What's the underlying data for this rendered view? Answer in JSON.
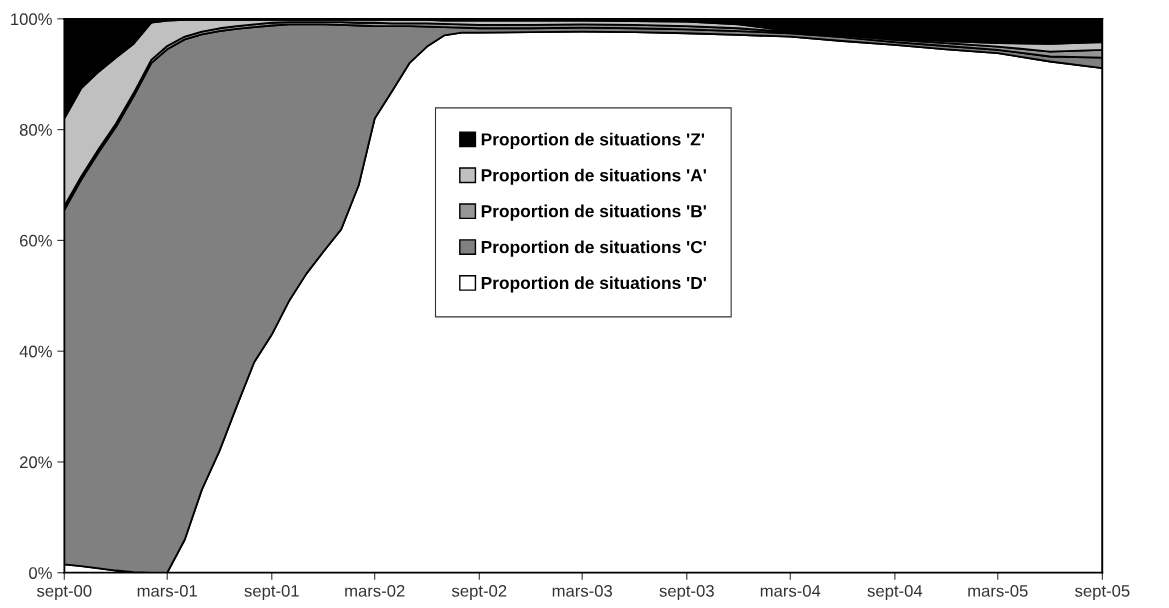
{
  "chart_data": {
    "type": "area",
    "stacked": true,
    "x": [
      "2000-09",
      "2000-10",
      "2000-11",
      "2000-12",
      "2001-01",
      "2001-02",
      "2001-03",
      "2001-04",
      "2001-05",
      "2001-06",
      "2001-07",
      "2001-08",
      "2001-09",
      "2001-10",
      "2001-11",
      "2001-12",
      "2002-01",
      "2002-02",
      "2002-03",
      "2002-04",
      "2002-05",
      "2002-06",
      "2002-07",
      "2002-08",
      "2002-09",
      "2002-12",
      "2003-03",
      "2003-06",
      "2003-09",
      "2003-12",
      "2004-03",
      "2004-06",
      "2004-09",
      "2004-12",
      "2005-03",
      "2005-06",
      "2005-09"
    ],
    "series": [
      {
        "name": "Proportion de situations 'D'",
        "color": "#ffffff",
        "values": [
          1.5,
          1.2,
          0.8,
          0.4,
          0.1,
          0,
          0,
          6,
          15,
          22,
          30,
          38,
          43,
          49,
          54,
          58,
          62,
          70,
          82,
          87,
          92,
          95,
          97,
          97.5,
          97.5,
          97.6,
          97.7,
          97.6,
          97.4,
          97.1,
          96.8,
          96.0,
          95.3,
          94.5,
          93.8,
          92.3,
          91.1
        ]
      },
      {
        "name": "Proportion de situations 'C'",
        "color": "#808080",
        "values": [
          64.0,
          69.8,
          75.2,
          80.1,
          85.9,
          92.0,
          94.5,
          90.3,
          82.2,
          75.8,
          68.2,
          60.5,
          55.8,
          50.0,
          45.0,
          41.0,
          36.9,
          28.8,
          16.7,
          11.7,
          6.7,
          3.6,
          1.5,
          0.9,
          0.8,
          0.7,
          0.7,
          0.7,
          0.7,
          0.7,
          0.6,
          0.7,
          0.5,
          0.6,
          0.6,
          0.9,
          1.9
        ]
      },
      {
        "name": "Proportion de situations 'B'",
        "color": "#969696",
        "values": [
          0.7,
          0.6,
          0.6,
          0.6,
          0.6,
          0.6,
          0.6,
          0.5,
          0.5,
          0.5,
          0.5,
          0.5,
          0.5,
          0.4,
          0.4,
          0.4,
          0.5,
          0.5,
          0.6,
          0.5,
          0.5,
          0.6,
          0.6,
          0.6,
          0.6,
          0.6,
          0.6,
          0.6,
          0.6,
          0.5,
          0.2,
          0.3,
          0.4,
          0.5,
          0.6,
          0.9,
          1.4
        ]
      },
      {
        "name": "Proportion de situations 'A'",
        "color": "#c0c0c0",
        "values": [
          15.8,
          15.9,
          13.9,
          11.9,
          8.9,
          6.7,
          4.6,
          3.0,
          2.1,
          1.5,
          1.1,
          0.8,
          0.5,
          0.4,
          0.4,
          0.4,
          0.4,
          0.5,
          0.5,
          0.6,
          0.6,
          0.6,
          0.6,
          0.7,
          0.8,
          0.8,
          0.7,
          0.7,
          0.8,
          0.7,
          0.2,
          0.3,
          0.3,
          0.4,
          0.6,
          1.4,
          1.4
        ]
      },
      {
        "name": "Proportion de situations 'Z'",
        "color": "#000000",
        "values": [
          18,
          12.5,
          9.5,
          7,
          4.5,
          0.7,
          0.3,
          0.2,
          0.2,
          0.2,
          0.2,
          0.2,
          0.2,
          0.2,
          0.2,
          0.2,
          0.2,
          0.2,
          0.2,
          0.2,
          0.2,
          0.2,
          0.3,
          0.3,
          0.3,
          0.3,
          0.3,
          0.4,
          0.5,
          1.0,
          2.2,
          2.7,
          3.5,
          4.0,
          4.4,
          4.5,
          4.2
        ]
      }
    ],
    "xlim": [
      "2000-09",
      "2005-09"
    ],
    "xticks": [
      {
        "value": "2000-09",
        "label": "sept-00"
      },
      {
        "value": "2001-03",
        "label": "mars-01"
      },
      {
        "value": "2001-09",
        "label": "sept-01"
      },
      {
        "value": "2002-03",
        "label": "mars-02"
      },
      {
        "value": "2002-09",
        "label": "sept-02"
      },
      {
        "value": "2003-03",
        "label": "mars-03"
      },
      {
        "value": "2003-09",
        "label": "sept-03"
      },
      {
        "value": "2004-03",
        "label": "mars-04"
      },
      {
        "value": "2004-09",
        "label": "sept-04"
      },
      {
        "value": "2005-03",
        "label": "mars-05"
      },
      {
        "value": "2005-09",
        "label": "sept-05"
      }
    ],
    "ylim": [
      0,
      100
    ],
    "yticks": [
      {
        "value": 0,
        "label": "0%"
      },
      {
        "value": 20,
        "label": "20%"
      },
      {
        "value": 40,
        "label": "40%"
      },
      {
        "value": 60,
        "label": "60%"
      },
      {
        "value": 80,
        "label": "80%"
      },
      {
        "value": 100,
        "label": "100%"
      }
    ],
    "grid": false,
    "legend": "top"
  }
}
